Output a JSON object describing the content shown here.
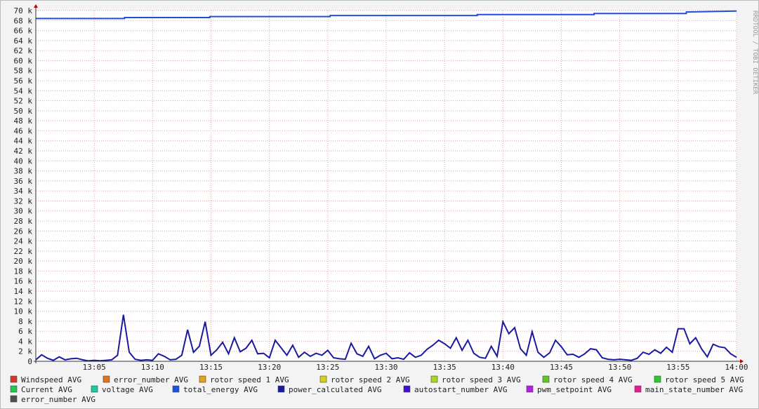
{
  "chart_data": {
    "type": "line",
    "grid": true,
    "xlim": [
      0,
      60
    ],
    "xticks": [
      {
        "value": 5,
        "label": "13:05"
      },
      {
        "value": 10,
        "label": "13:10"
      },
      {
        "value": 15,
        "label": "13:15"
      },
      {
        "value": 20,
        "label": "13:20"
      },
      {
        "value": 25,
        "label": "13:25"
      },
      {
        "value": 30,
        "label": "13:30"
      },
      {
        "value": 35,
        "label": "13:35"
      },
      {
        "value": 40,
        "label": "13:40"
      },
      {
        "value": 45,
        "label": "13:45"
      },
      {
        "value": 50,
        "label": "13:50"
      },
      {
        "value": 55,
        "label": "13:55"
      },
      {
        "value": 60,
        "label": "14:00"
      }
    ],
    "ylim": [
      0,
      70000
    ],
    "yticks": [
      0,
      {
        "value": 2000,
        "label": "2 k"
      },
      {
        "value": 4000,
        "label": "4 k"
      },
      {
        "value": 6000,
        "label": "6 k"
      },
      {
        "value": 8000,
        "label": "8 k"
      },
      {
        "value": 10000,
        "label": "10 k"
      },
      {
        "value": 12000,
        "label": "12 k"
      },
      {
        "value": 14000,
        "label": "14 k"
      },
      {
        "value": 16000,
        "label": "16 k"
      },
      {
        "value": 18000,
        "label": "18 k"
      },
      {
        "value": 20000,
        "label": "20 k"
      },
      {
        "value": 22000,
        "label": "22 k"
      },
      {
        "value": 24000,
        "label": "24 k"
      },
      {
        "value": 26000,
        "label": "26 k"
      },
      {
        "value": 28000,
        "label": "28 k"
      },
      {
        "value": 30000,
        "label": "30 k"
      },
      {
        "value": 32000,
        "label": "32 k"
      },
      {
        "value": 34000,
        "label": "34 k"
      },
      {
        "value": 36000,
        "label": "36 k"
      },
      {
        "value": 38000,
        "label": "38 k"
      },
      {
        "value": 40000,
        "label": "40 k"
      },
      {
        "value": 42000,
        "label": "42 k"
      },
      {
        "value": 44000,
        "label": "44 k"
      },
      {
        "value": 46000,
        "label": "46 k"
      },
      {
        "value": 48000,
        "label": "48 k"
      },
      {
        "value": 50000,
        "label": "50 k"
      },
      {
        "value": 52000,
        "label": "52 k"
      },
      {
        "value": 54000,
        "label": "54 k"
      },
      {
        "value": 56000,
        "label": "56 k"
      },
      {
        "value": 58000,
        "label": "58 k"
      },
      {
        "value": 60000,
        "label": "60 k"
      },
      {
        "value": 62000,
        "label": "62 k"
      },
      {
        "value": 64000,
        "label": "64 k"
      },
      {
        "value": 66000,
        "label": "66 k"
      },
      {
        "value": 68000,
        "label": "68 k"
      },
      {
        "value": 70000,
        "label": "70 k"
      }
    ],
    "series": [
      {
        "name": "total_energy AVG",
        "color": "#2050d8",
        "x": [
          0,
          7.6,
          7.6,
          14.9,
          14.9,
          25.2,
          25.2,
          37.8,
          37.8,
          47.8,
          47.8,
          55.7,
          55.7,
          60
        ],
        "values": [
          68400,
          68400,
          68600,
          68600,
          68800,
          68800,
          69000,
          69000,
          69200,
          69200,
          69400,
          69400,
          69700,
          69900
        ]
      },
      {
        "name": "power_calculated AVG",
        "color": "#1a1aa0",
        "x": [
          0,
          0.5,
          1,
          1.5,
          2,
          2.5,
          3,
          3.5,
          4,
          4.5,
          5,
          5.5,
          6,
          6.5,
          7,
          7.5,
          8,
          8.5,
          9,
          9.5,
          10,
          10.5,
          11,
          11.5,
          12,
          12.5,
          13,
          13.5,
          14,
          14.5,
          15,
          15.5,
          16,
          16.5,
          17,
          17.5,
          18,
          18.5,
          19,
          19.5,
          20,
          20.5,
          21,
          21.5,
          22,
          22.5,
          23,
          23.5,
          24,
          24.5,
          25,
          25.5,
          26,
          26.5,
          27,
          27.5,
          28,
          28.5,
          29,
          29.5,
          30,
          30.5,
          31,
          31.5,
          32,
          32.5,
          33,
          33.5,
          34,
          34.5,
          35,
          35.5,
          36,
          36.5,
          37,
          37.5,
          38,
          38.5,
          39,
          39.5,
          40,
          40.5,
          41,
          41.5,
          42,
          42.5,
          43,
          43.5,
          44,
          44.5,
          45,
          45.5,
          46,
          46.5,
          47,
          47.5,
          48,
          48.5,
          49,
          49.5,
          50,
          50.5,
          51,
          51.5,
          52,
          52.5,
          53,
          53.5,
          54,
          54.5,
          55,
          55.5,
          56,
          56.5,
          57,
          57.5,
          58,
          58.5,
          59,
          59.5,
          60
        ],
        "values": [
          300,
          1300,
          600,
          200,
          900,
          300,
          500,
          600,
          300,
          100,
          200,
          100,
          200,
          300,
          1200,
          9300,
          1800,
          400,
          200,
          300,
          200,
          1500,
          1000,
          300,
          400,
          1200,
          6300,
          1800,
          3000,
          7900,
          1200,
          2300,
          3800,
          1500,
          4700,
          1900,
          2600,
          4200,
          1500,
          1600,
          700,
          4200,
          2700,
          1200,
          3200,
          800,
          1800,
          1000,
          1600,
          1200,
          2200,
          700,
          500,
          400,
          3600,
          1500,
          1000,
          3000,
          500,
          1200,
          1600,
          500,
          700,
          400,
          1700,
          800,
          1200,
          2400,
          3200,
          4200,
          3500,
          2600,
          4700,
          2200,
          4200,
          1600,
          800,
          600,
          3000,
          1000,
          7900,
          5500,
          6700,
          2500,
          1200,
          5900,
          1800,
          800,
          1700,
          4200,
          2900,
          1300,
          1400,
          800,
          1500,
          2500,
          2300,
          700,
          400,
          300,
          400,
          300,
          200,
          600,
          1800,
          1400,
          2300,
          1600,
          2800,
          1800,
          6500,
          6500,
          3500,
          4700,
          2500,
          900,
          3400,
          2900,
          2700,
          1500,
          800
        ]
      }
    ],
    "legend": [
      {
        "name": "Windspeed AVG",
        "color": "#d9352b"
      },
      {
        "name": "error_number AVG",
        "color": "#e3731b"
      },
      {
        "name": "rotor speed 1 AVG",
        "color": "#e0a020"
      },
      {
        "name": "rotor speed 2 AVG",
        "color": "#d8cf20"
      },
      {
        "name": "rotor speed 3 AVG",
        "color": "#a8d820"
      },
      {
        "name": "rotor speed 4 AVG",
        "color": "#60c820"
      },
      {
        "name": "rotor speed 5 AVG",
        "color": "#30c830"
      },
      {
        "name": "Current AVG",
        "color": "#20c850"
      },
      {
        "name": "voltage AVG",
        "color": "#20c8a0"
      },
      {
        "name": "total_energy AVG",
        "color": "#2050d8"
      },
      {
        "name": "power_calculated AVG",
        "color": "#1a1aa0"
      },
      {
        "name": "autostart_number AVG",
        "color": "#4010d0"
      },
      {
        "name": "pwm_setpoint AVG",
        "color": "#b020e0"
      },
      {
        "name": "main_state_number AVG",
        "color": "#e02090"
      },
      {
        "name": "error_number AVG",
        "color": "#505050"
      }
    ],
    "watermark": "RRDTOOL / TOBI OETIKER"
  }
}
